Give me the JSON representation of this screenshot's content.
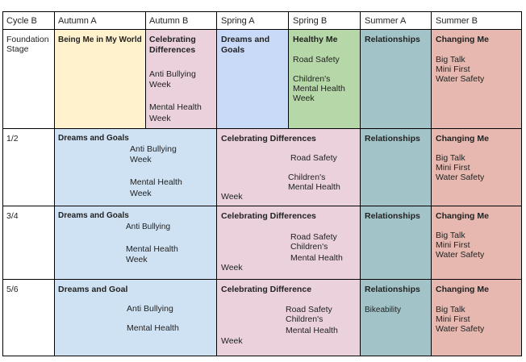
{
  "header": {
    "cycle": "Cycle B",
    "autumn_a": "Autumn A",
    "autumn_b": "Autumn B",
    "spring_a": "Spring A",
    "spring_b": "Spring B",
    "summer_a": "Summer A",
    "summer_b": "Summer B"
  },
  "colors": {
    "yellow": "#fff2cc",
    "pink": "#ead1dc",
    "blue": "#c9daf8",
    "green": "#b6d7a8",
    "teal": "#a2c4c9",
    "red": "#e6b8af",
    "lightblue": "#cfe2f3"
  },
  "rows": {
    "foundation": {
      "label_1": "Foundation",
      "label_2": "Stage",
      "autumn_a_title": "Being Me in My World",
      "autumn_b_title_1": "Celebrating",
      "autumn_b_title_2": "Differences",
      "autumn_b_note_1": "Anti Bullying",
      "autumn_b_note_2": "Week",
      "autumn_b_note_3": "Mental Health",
      "autumn_b_note_4": "Week",
      "spring_a_title_1": "Dreams and",
      "spring_a_title_2": "Goals",
      "spring_b_title": "Healthy Me",
      "spring_b_note_1": "Road Safety",
      "spring_b_note_2": "Children's",
      "spring_b_note_3": "Mental Health",
      "spring_b_note_4": "Week",
      "summer_a_title": "Relationships",
      "summer_b_title": "Changing Me",
      "summer_b_note_1": "Big Talk",
      "summer_b_note_2": "Mini First",
      "summer_b_note_3": "Water Safety"
    },
    "y12": {
      "label": "1/2",
      "autumn_title": "Dreams and Goals",
      "autumn_note_1": "Anti Bullying",
      "autumn_note_2": "Week",
      "autumn_note_3": "Mental Health",
      "autumn_note_4": "Week",
      "spring_title": "Celebrating Differences",
      "spring_note_1": "Road Safety",
      "spring_note_2": "Children's",
      "spring_note_3": "Mental Health",
      "spring_note_4": "Week",
      "summer_a_title": "Relationships",
      "summer_b_title": "Changing Me",
      "summer_b_note_1": "Big Talk",
      "summer_b_note_2": "Mini First",
      "summer_b_note_3": "Water Safety"
    },
    "y34": {
      "label": "3/4",
      "autumn_title": "Dreams and Goals",
      "autumn_note_1": "Anti Bullying",
      "autumn_note_2": "Mental Health",
      "autumn_note_3": "Week",
      "spring_title": "Celebrating Differences",
      "spring_note_1": "Road Safety",
      "spring_note_2": "Children's",
      "spring_note_3": "Mental Health",
      "spring_note_4": "Week",
      "summer_a_title": "Relationships",
      "summer_b_title": "Changing Me",
      "summer_b_note_1": "Big Talk",
      "summer_b_note_2": "Mini First",
      "summer_b_note_3": "Water Safety"
    },
    "y56": {
      "label": "5/6",
      "autumn_title": "Dreams and Goal",
      "autumn_note_1": "Anti Bullying",
      "autumn_note_2": "Mental Health",
      "spring_title": "Celebrating Difference",
      "spring_note_1": "Road Safety",
      "spring_note_2": "Children's",
      "spring_note_3": "Mental Health",
      "spring_note_4": "Week",
      "summer_a_title": "Relationships",
      "summer_a_note_1": "Bikeability",
      "summer_b_title": "Changing Me",
      "summer_b_note_1": "Big Talk",
      "summer_b_note_2": "Mini First",
      "summer_b_note_3": "Water Safety"
    }
  }
}
